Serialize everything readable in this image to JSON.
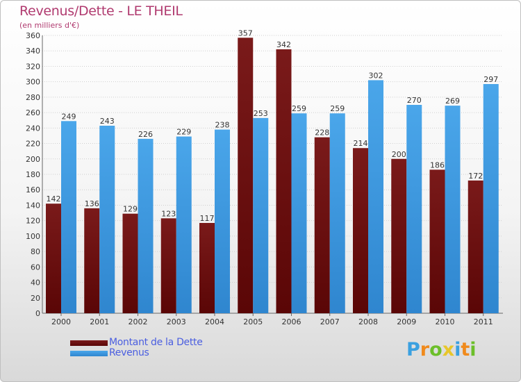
{
  "title": "Revenus/Dette - LE THEIL",
  "subtitle": "(en milliers d'€)",
  "colors": {
    "debt": "#7a1a1a",
    "debt_dark": "#5a0606",
    "revenue": "#4aa6ea",
    "revenue_dark": "#2f86cf",
    "title": "#b03a6f",
    "legend_text": "#4a5ee0"
  },
  "chart_data": {
    "type": "bar",
    "categories": [
      "2000",
      "2001",
      "2002",
      "2003",
      "2004",
      "2005",
      "2006",
      "2007",
      "2008",
      "2009",
      "2010",
      "2011"
    ],
    "series": [
      {
        "name": "Montant de la Dette",
        "values": [
          142,
          136,
          129,
          123,
          117,
          357,
          342,
          228,
          214,
          200,
          186,
          172
        ]
      },
      {
        "name": "Revenus",
        "values": [
          249,
          243,
          226,
          229,
          238,
          253,
          259,
          259,
          302,
          270,
          269,
          297
        ]
      }
    ],
    "ylim": [
      0,
      360
    ],
    "yticks": [
      0,
      20,
      40,
      60,
      80,
      100,
      120,
      140,
      160,
      180,
      200,
      220,
      240,
      260,
      280,
      300,
      320,
      340,
      360
    ],
    "grid": true,
    "legend_position": "bottom-left"
  },
  "logo": {
    "letters": [
      "P",
      "r",
      "o",
      "x",
      "i",
      "t",
      "i"
    ],
    "colors": [
      "#3aa0e0",
      "#f08a1c",
      "#6cbf2a",
      "#e8c62a",
      "#3aa0e0",
      "#f08a1c",
      "#6cbf2a"
    ]
  }
}
